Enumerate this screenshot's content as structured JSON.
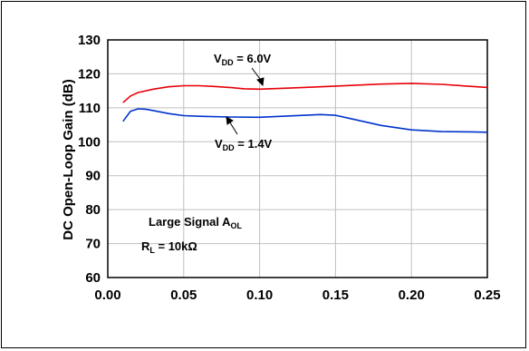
{
  "chart_data": {
    "type": "line",
    "ylabel": "DC Open-Loop Gain (dB)",
    "xlim": [
      0.0,
      0.25
    ],
    "ylim": [
      60,
      130
    ],
    "x_ticks": [
      0.0,
      0.05,
      0.1,
      0.15,
      0.2,
      0.25
    ],
    "x_tick_labels": [
      "0.00",
      "0.05",
      "0.10",
      "0.15",
      "0.20",
      "0.25"
    ],
    "y_ticks": [
      60,
      70,
      80,
      90,
      100,
      110,
      120,
      130
    ],
    "y_tick_labels": [
      "60",
      "70",
      "80",
      "90",
      "100",
      "110",
      "120",
      "130"
    ],
    "grid": true,
    "series": [
      {
        "label_main": "V",
        "label_sub": "DD",
        "label_tail": " = 6.0V",
        "color": "#e8000b",
        "x": [
          0.01,
          0.015,
          0.02,
          0.03,
          0.04,
          0.05,
          0.06,
          0.07,
          0.08,
          0.09,
          0.1,
          0.12,
          0.14,
          0.16,
          0.18,
          0.2,
          0.22,
          0.24,
          0.25
        ],
        "y": [
          111.5,
          113.5,
          114.5,
          115.5,
          116.2,
          116.5,
          116.5,
          116.3,
          116.0,
          115.6,
          115.5,
          115.8,
          116.2,
          116.6,
          117.0,
          117.2,
          116.9,
          116.3,
          116.0
        ]
      },
      {
        "label_main": "V",
        "label_sub": "DD",
        "label_tail": " = 1.4V",
        "color": "#0033cc",
        "x": [
          0.01,
          0.015,
          0.02,
          0.025,
          0.03,
          0.04,
          0.05,
          0.06,
          0.08,
          0.1,
          0.12,
          0.14,
          0.15,
          0.16,
          0.18,
          0.2,
          0.22,
          0.24,
          0.25
        ],
        "y": [
          106.0,
          109.0,
          109.7,
          109.6,
          109.2,
          108.3,
          107.7,
          107.5,
          107.3,
          107.2,
          107.6,
          108.0,
          107.8,
          106.8,
          104.8,
          103.5,
          103.0,
          102.9,
          102.8
        ]
      }
    ],
    "annotations": {
      "large_signal_main": "Large Signal A",
      "large_signal_sub": "OL",
      "rl_main": "R",
      "rl_sub": "L",
      "rl_tail": " = 10kΩ"
    }
  }
}
